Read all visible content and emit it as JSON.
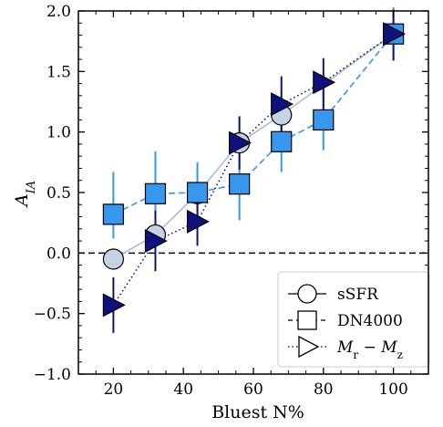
{
  "chart_data": {
    "type": "scatter",
    "xlabel": "Bluest N%",
    "ylabel": "A_IA",
    "xlim": [
      10,
      110
    ],
    "ylim": [
      -1.0,
      2.0
    ],
    "x_ticks": [
      20,
      40,
      60,
      80,
      100
    ],
    "y_ticks": [
      -1.0,
      -0.5,
      0.0,
      0.5,
      1.0,
      1.5,
      2.0
    ],
    "x_tick_labels": [
      "20",
      "40",
      "60",
      "80",
      "100"
    ],
    "y_tick_labels": [
      "−1.0",
      "−0.5",
      "0.0",
      "0.5",
      "1.0",
      "1.5",
      "2.0"
    ],
    "reference_line": {
      "y": 0.0,
      "style": "dashed",
      "color": "#000000"
    },
    "grid": false,
    "legend_position": "lower-right",
    "series": [
      {
        "name": "sSFR",
        "marker": "circle",
        "line_style": "solid",
        "color": "#c6d3e4",
        "line_color": "#aabcd6",
        "x": [
          20,
          32,
          44,
          56,
          68,
          100
        ],
        "y": [
          -0.05,
          0.15,
          0.49,
          0.91,
          1.14,
          1.81
        ],
        "yerr_low": [
          0.05,
          0.17,
          0.2,
          0.2,
          0.2,
          0.2
        ],
        "yerr_high": [
          0.05,
          0.17,
          0.2,
          0.2,
          0.2,
          0.2
        ]
      },
      {
        "name": "DN4000",
        "marker": "square",
        "line_style": "dashed",
        "color": "#3797ef",
        "line_color": "#3797ef",
        "x": [
          20,
          32,
          44,
          56,
          68,
          80,
          100
        ],
        "y": [
          0.32,
          0.49,
          0.5,
          0.57,
          0.92,
          1.1,
          1.81
        ],
        "yerr_low": [
          0.2,
          0.2,
          0.22,
          0.3,
          0.25,
          0.25,
          0.22
        ],
        "yerr_high": [
          0.35,
          0.35,
          0.25,
          0.3,
          0.25,
          0.25,
          0.22
        ]
      },
      {
        "name": "M_r − M_z",
        "marker": "triangle-right",
        "line_style": "dotted",
        "color": "#0f127d",
        "line_color": "#0f127d",
        "x": [
          20,
          32,
          44,
          56,
          68,
          80,
          100
        ],
        "y": [
          -0.43,
          0.1,
          0.26,
          0.91,
          1.23,
          1.41,
          1.81
        ],
        "yerr_low": [
          0.23,
          0.25,
          0.2,
          0.22,
          0.23,
          0.23,
          0.22
        ],
        "yerr_high": [
          0.23,
          0.25,
          0.2,
          0.22,
          0.23,
          0.2,
          0.2
        ]
      }
    ]
  },
  "legend": {
    "items": [
      {
        "label": "sSFR",
        "marker": "circle",
        "line_style": "solid"
      },
      {
        "label": "DN4000",
        "marker": "square",
        "line_style": "dashed"
      },
      {
        "label_main": "M",
        "label_sub1": "r",
        "label_minus": " − ",
        "label_main2": "M",
        "label_sub2": "z",
        "marker": "triangle-right",
        "line_style": "dotted"
      }
    ]
  }
}
